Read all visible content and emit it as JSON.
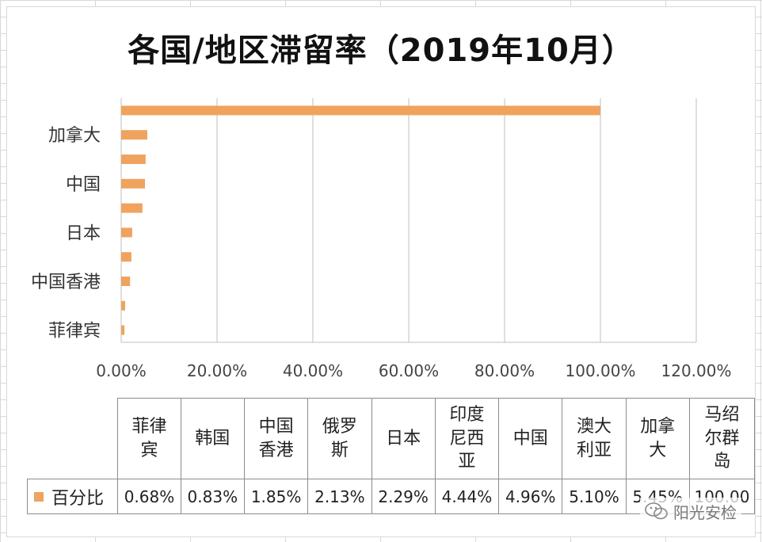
{
  "chart_data": {
    "type": "bar",
    "orientation": "horizontal",
    "title": "各国/地区滞留率（2019年10月）",
    "categories": [
      "菲律宾",
      "韩国",
      "中国香港",
      "俄罗斯",
      "日本",
      "印度尼西亚",
      "中国",
      "澳大利亚",
      "加拿大",
      "马绍尔群岛"
    ],
    "visible_axis_labels": [
      "菲律宾",
      "中国香港",
      "日本",
      "中国",
      "加拿大"
    ],
    "series": [
      {
        "name": "百分比",
        "values": [
          0.68,
          0.83,
          1.85,
          2.13,
          2.29,
          4.44,
          4.96,
          5.1,
          5.45,
          100.0
        ],
        "value_labels": [
          "0.68%",
          "0.83%",
          "1.85%",
          "2.13%",
          "2.29%",
          "4.44%",
          "4.96%",
          "5.10%",
          "5.45%",
          "100.00"
        ]
      }
    ],
    "x_ticks": [
      "0.00%",
      "20.00%",
      "40.00%",
      "60.00%",
      "80.00%",
      "100.00%",
      "120.00%"
    ],
    "xlim": [
      0,
      120
    ],
    "grid": "vertical",
    "legend": "data-table",
    "color": "#f0a35e"
  },
  "table_headers_wrapped": [
    [
      "菲律",
      "宾"
    ],
    [
      "韩国"
    ],
    [
      "中国",
      "香港"
    ],
    [
      "俄罗",
      "斯"
    ],
    [
      "日本"
    ],
    [
      "印度",
      "尼西",
      "亚"
    ],
    [
      "中国"
    ],
    [
      "澳大",
      "利亚"
    ],
    [
      "加拿",
      "大"
    ],
    [
      "马绍",
      "尔群",
      "岛"
    ]
  ],
  "watermark": {
    "icon": "wechat-icon",
    "text": "阳光安检"
  }
}
